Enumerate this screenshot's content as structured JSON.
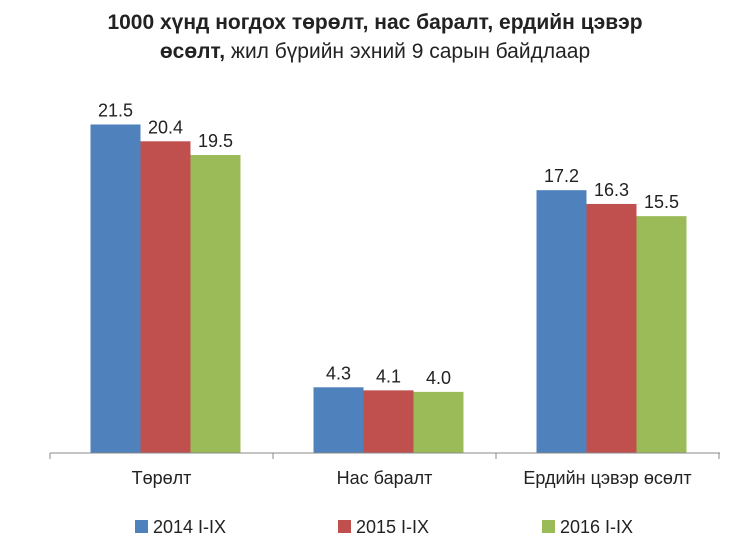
{
  "title": {
    "line1_bold": "1000 хүнд ногдох төрөлт, нас баралт, ердийн цэвэр",
    "line2_bold": "өсөлт,",
    "line2_normal": " жил бүрийн эхний 9 сарын байдлаар"
  },
  "chart_data": {
    "type": "bar",
    "categories": [
      "Төрөлт",
      "Нас баралт",
      "Ердийн цэвэр өсөлт"
    ],
    "series": [
      {
        "name": "2014 I-IX",
        "values": [
          21.5,
          4.3,
          17.2
        ],
        "color": "#4F81BD"
      },
      {
        "name": "2015 I-IX",
        "values": [
          20.4,
          4.1,
          16.3
        ],
        "color": "#C0504D"
      },
      {
        "name": "2016 I-IX",
        "values": [
          19.5,
          4.0,
          15.5
        ],
        "color": "#9BBB59"
      }
    ],
    "ylim": [
      0,
      25
    ],
    "grid": false,
    "legend_position": "bottom"
  }
}
